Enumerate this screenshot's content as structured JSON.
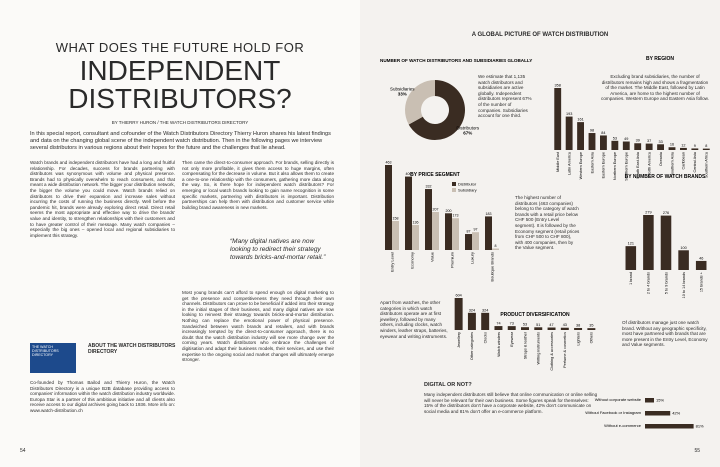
{
  "left": {
    "title_1": "WHAT DOES THE FUTURE HOLD FOR",
    "title_2": "INDEPENDENT",
    "title_3": "DISTRIBUTORS?",
    "byline": "BY THIERRY HURON / THE WATCH DISTRIBUTORS DIRECTORY",
    "intro": "In this special report, consultant and cofounder of the Watch Distributors Directory Thierry Huron shares his latest findings and data on the changing global scene of the independent watch distribution. Then in the following pages we interview several distributors in various regions about their hopes for the future and the challenges that lie ahead.",
    "col1": "Watch brands and independent distributors have had a long and fruitful relationship. For decades, success for brands partnering with distributors was synonymous with volume and physical presence. Brands had to physically overwhelm to reach consumers, and that meant a wide distribution network. The bigger your distribution network, the bigger the volume you could move. Watch brands relied on distributors to drive their expansion and increase sales without incurring the costs of running the business directly. Well before the pandemic hit, brands were already exploring direct retail. Direct retail seems the most appropriate and effective way to drive the brands' value and identity, to strengthen relationships with their customers and to have greater control of their message. Many watch companies – especially the big ones – opened local and regional subsidiaries to implement this strategy.",
    "col2a": "Then came the direct-to-consumer approach. For brands, selling directly is not only more profitable, it gives them access to huge margins, often compensating for the decrease in volume. But it also allows them to create a one-to-one relationship with the consumers, gathering more data along the way. So, is there hope for independent watch distributors? For emerging or local watch brands looking to gain name recognition in some specific markets, partnering with distributors is important. Distribution partnerships can help them with distribution and customer service while building brand awareness in new markets.",
    "quote": "“Many digital natives are now looking to redirect their strategy towards bricks-and-mortar retail.”",
    "col2b": "Most young brands can't afford to spend enough on digital marketing to get the presence and competitiveness they need through their own channels. Distributors can prove to be beneficial if added into their strategy in the initial stages of their business, and many digital natives are now looking to reinvest their strategy towards bricks-and-mortar distribution. Nothing can replace the emotional power of physical presence. Sandwiched between watch brands and retailers, and with brands increasingly tempted by the direct-to-consumer approach, there is no doubt that the watch distribution industry will see more change over the coming years. Watch distributors who embrace the challenges of digitisation and adapt their business models, their services, and use their expertise to the ongoing social and market changes will ultimately emerge stronger.",
    "about_title": "ABOUT THE WATCH DISTRIBUTORS DIRECTORY",
    "about_text": "Co-founded by Thomas Bailod and Thierry Huron, the Watch Distributors Directory is a unique B2B database providing access to companies' information within the watch distribution industry worldwide. Europa Star is a partner of this ambitious initiative and all clients also receive access to our digital archives going back to 1936. More info on: www.watch-distribution.ch",
    "logo": "THE WATCH DISTRIBUTORS DIRECTORY",
    "page": "54"
  },
  "right": {
    "header": "A GLOBAL PICTURE OF WATCH DISTRIBUTION",
    "donut_note": "We estimate that 1,135 watch distributors and subsidiaries are active globally. Independent distributors represent 67% of the number of companies. Subsidiaries account for one third.",
    "region_note": "Excluding brand subsidiaries, the number of distributors remains high and shows a fragmentation of the market. The Middle East, followed by Latin America, are home to the highest number of companies. Western Europe and Eastern Asia follow.",
    "price_note": "The highest number of distributors (463 companies) belong to the category of watch brands with a retail price below CHF 500 (Entry Level segment). It is followed by the Economy segment (retail prices from CHF 500 to CHF 800), with 400 companies, then by the Value segment.",
    "brands_note": "Of distributors manage just one watch brand. Without any geographic specificity, most have partnered with brands that are more present in the Entry Level, Economy and Value segments.",
    "product_note": "Apart from watches, the other categories in which watch distributors operate are at first jewellery, followed by many others, including clocks, watch winders, leather straps, batteries, eyewear and writing instruments.",
    "digital_title": "DIGITAL OR NOT?",
    "digital_note": "Many independent distributors still believe that online communication or online selling will never be relevant for their own business. Some figures speak for themselves: 15% of the distributors don't have a corporate website, 42% don't communicate on social media and 81% don't offer an e-commerce platform.",
    "page": "55"
  },
  "chart_data": [
    {
      "type": "pie",
      "title": "NUMBER OF WATCH DISTRIBUTORS AND SUBSIDIARIES GLOBALLY",
      "categories": [
        "Distributors",
        "Subsidiaries"
      ],
      "values": [
        67,
        33
      ],
      "value_labels": [
        "67%",
        "33%"
      ],
      "colors": [
        "#3a2c22",
        "#c9bfb3"
      ]
    },
    {
      "type": "bar",
      "title": "BY REGION",
      "categories": [
        "Middle East",
        "Latin America",
        "Western Europe",
        "Eastern Asia",
        "Eastern Europe",
        "Northern Europe",
        "Southern Europe",
        "South East Asia",
        "North America",
        "Oceania",
        "Southern Asia",
        "Caribbean",
        "Central Asia",
        "Southern Africa"
      ],
      "values": [
        358,
        193,
        161,
        98,
        84,
        53,
        49,
        39,
        37,
        33,
        16,
        12,
        9,
        8
      ],
      "color": "#3a2c22",
      "ylim": [
        0,
        358
      ]
    },
    {
      "type": "grouped-bar",
      "title": "BY PRICE SEGMENT",
      "categories": [
        "Entry Level",
        "Economy",
        "Value",
        "Premium",
        "Luxury",
        "Boutique Brands"
      ],
      "series": [
        {
          "name": "Distributor",
          "color": "#3a2c22",
          "values": [
            463,
            400,
            332,
            200,
            87,
            183
          ]
        },
        {
          "name": "Subsidiary",
          "color": "#c9bfb3",
          "values": [
            158,
            136,
            207,
            173,
            97,
            8
          ]
        }
      ],
      "ylim": [
        0,
        463
      ]
    },
    {
      "type": "bar",
      "title": "BY NUMBER OF WATCH BRANDS",
      "categories": [
        "1 brand",
        "2 to 4 brands",
        "5 to 9 brands",
        "10 to 14 brands",
        "15 brands +"
      ],
      "values": [
        121,
        279,
        276,
        100,
        46
      ],
      "color": "#3a2c22",
      "ylim": [
        0,
        279
      ]
    },
    {
      "type": "bar",
      "title": "PRODUCT DIVERSIFICATION",
      "categories": [
        "Jewellery",
        "Other categories",
        "Clocks",
        "Watch winders",
        "Eyewear",
        "Straps & leather",
        "Writing instruments",
        "Clothing & accessories",
        "Perfume & cosmetics",
        "Lighters",
        "Others"
      ],
      "values": [
        604,
        324,
        324,
        74,
        73,
        53,
        51,
        47,
        43,
        38,
        35
      ],
      "color": "#3a2c22",
      "ylim": [
        0,
        604
      ]
    },
    {
      "type": "hbar",
      "categories": [
        "Without corporate website",
        "Without Facebook or Instagram",
        "Without e-commerce"
      ],
      "values": [
        15,
        42,
        81
      ],
      "value_labels": [
        "15%",
        "42%",
        "81%"
      ],
      "color": "#3a2c22",
      "xlim": [
        0,
        100
      ]
    }
  ]
}
